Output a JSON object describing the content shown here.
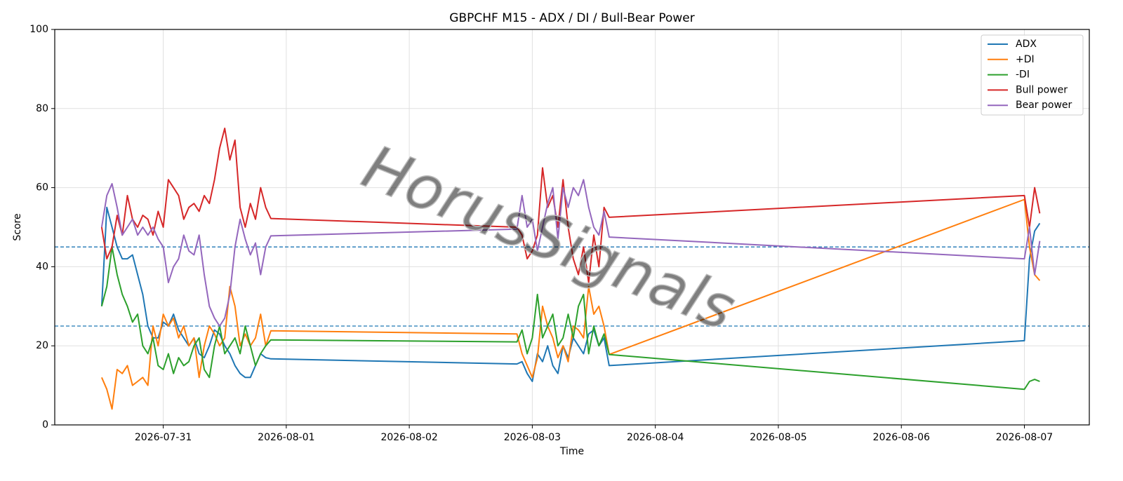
{
  "chart_data": {
    "type": "line",
    "title": "GBPCHF M15 - ADX / DI / Bull-Bear Power",
    "xlabel": "Time",
    "ylabel": "Score",
    "watermark": "HorusSignals",
    "legend": "upper right",
    "grid": true,
    "xlim": [
      "2026-07-30 02:50",
      "2026-08-07 12:40"
    ],
    "xticks": [
      "2026-07-31",
      "2026-08-01",
      "2026-08-02",
      "2026-08-03",
      "2026-08-04",
      "2026-08-05",
      "2026-08-06",
      "2026-08-07"
    ],
    "ylim": [
      0,
      100
    ],
    "yticks": [
      0,
      20,
      40,
      60,
      80,
      100
    ],
    "hlines": [
      45,
      25
    ],
    "hline_color": "#1f77b4",
    "x": [
      "2026-07-30 12:00",
      "2026-07-30 13:00",
      "2026-07-30 14:00",
      "2026-07-30 15:00",
      "2026-07-30 16:00",
      "2026-07-30 17:00",
      "2026-07-30 18:00",
      "2026-07-30 19:00",
      "2026-07-30 20:00",
      "2026-07-30 21:00",
      "2026-07-30 22:00",
      "2026-07-30 23:00",
      "2026-07-31 00:00",
      "2026-07-31 01:00",
      "2026-07-31 02:00",
      "2026-07-31 03:00",
      "2026-07-31 04:00",
      "2026-07-31 05:00",
      "2026-07-31 06:00",
      "2026-07-31 07:00",
      "2026-07-31 08:00",
      "2026-07-31 09:00",
      "2026-07-31 10:00",
      "2026-07-31 11:00",
      "2026-07-31 12:00",
      "2026-07-31 13:00",
      "2026-07-31 14:00",
      "2026-07-31 15:00",
      "2026-07-31 16:00",
      "2026-07-31 17:00",
      "2026-07-31 18:00",
      "2026-07-31 19:00",
      "2026-07-31 20:00",
      "2026-07-31 21:00",
      "2026-08-02 21:00",
      "2026-08-02 22:00",
      "2026-08-02 23:00",
      "2026-08-03 00:00",
      "2026-08-03 01:00",
      "2026-08-03 02:00",
      "2026-08-03 03:00",
      "2026-08-03 04:00",
      "2026-08-03 05:00",
      "2026-08-03 06:00",
      "2026-08-03 07:00",
      "2026-08-03 08:00",
      "2026-08-03 09:00",
      "2026-08-03 10:00",
      "2026-08-03 11:00",
      "2026-08-03 12:00",
      "2026-08-03 13:00",
      "2026-08-03 14:00",
      "2026-08-03 15:00",
      "2026-08-07 00:00",
      "2026-08-07 01:00",
      "2026-08-07 02:00",
      "2026-08-07 03:00"
    ],
    "series": [
      {
        "name": "ADX",
        "color": "#1f77b4",
        "values": [
          30,
          55,
          50,
          45,
          42,
          42,
          43,
          38,
          33,
          25,
          22,
          22,
          26,
          25,
          28,
          24,
          22,
          20,
          22,
          18,
          17,
          20,
          24,
          23,
          20,
          18,
          15,
          13,
          12,
          12,
          15,
          18,
          17,
          16.7,
          15.4,
          16,
          13,
          11,
          18,
          16,
          20,
          15,
          13,
          20,
          17,
          22,
          20,
          18,
          23,
          24,
          20,
          22,
          15,
          21.3,
          42,
          49,
          51
        ]
      },
      {
        "name": "+DI",
        "color": "#ff7f0e",
        "values": [
          12,
          9,
          4,
          14,
          13,
          15,
          10,
          11,
          12,
          10,
          25,
          20,
          28,
          25,
          27,
          22,
          25,
          20,
          22,
          12,
          20,
          25,
          23,
          20,
          22,
          35,
          30,
          20,
          23,
          20,
          22,
          28,
          20,
          23.8,
          23,
          18,
          15,
          12,
          17,
          30,
          25,
          22,
          17,
          20,
          16,
          25,
          24,
          22,
          35,
          28,
          30,
          25,
          17.8,
          57,
          45,
          38,
          36.5
        ]
      },
      {
        "name": "-DI",
        "color": "#2ca02c",
        "values": [
          30,
          35,
          45,
          38,
          33,
          30,
          26,
          28,
          20,
          18,
          22,
          15,
          14,
          18,
          13,
          17,
          15,
          16,
          20,
          22,
          14,
          12,
          20,
          25,
          18,
          20,
          22,
          18,
          25,
          20,
          15,
          18,
          20,
          21.5,
          21,
          24,
          18,
          22,
          33,
          22,
          25,
          28,
          20,
          22,
          28,
          22,
          30,
          33,
          18,
          25,
          20,
          23,
          17.8,
          9,
          11,
          11.5,
          11
        ]
      },
      {
        "name": "Bull power",
        "color": "#d62728",
        "values": [
          50,
          42,
          45,
          53,
          48,
          58,
          52,
          50,
          53,
          52,
          48,
          54,
          50,
          62,
          60,
          58,
          52,
          55,
          56,
          54,
          58,
          56,
          62,
          70,
          75,
          67,
          72,
          55,
          50,
          56,
          52,
          60,
          55,
          52.2,
          50,
          48,
          42,
          44,
          48,
          65,
          55,
          58,
          50,
          62,
          50,
          42,
          38,
          45,
          36,
          48,
          40,
          55,
          52.5,
          58,
          50,
          60,
          53.5
        ]
      },
      {
        "name": "Bear power",
        "color": "#9467bd",
        "values": [
          50,
          58,
          61,
          55,
          48,
          50,
          52,
          48,
          50,
          48,
          50,
          47,
          45,
          36,
          40,
          42,
          48,
          44,
          43,
          48,
          38,
          30,
          27,
          25,
          27,
          33,
          45,
          52,
          47,
          43,
          46,
          38,
          45,
          47.8,
          49.5,
          58,
          50,
          52,
          44,
          50,
          56,
          60,
          47,
          60,
          55,
          60,
          58,
          62,
          55,
          50,
          48,
          54,
          47.5,
          42,
          50,
          38,
          46.5
        ]
      }
    ]
  }
}
